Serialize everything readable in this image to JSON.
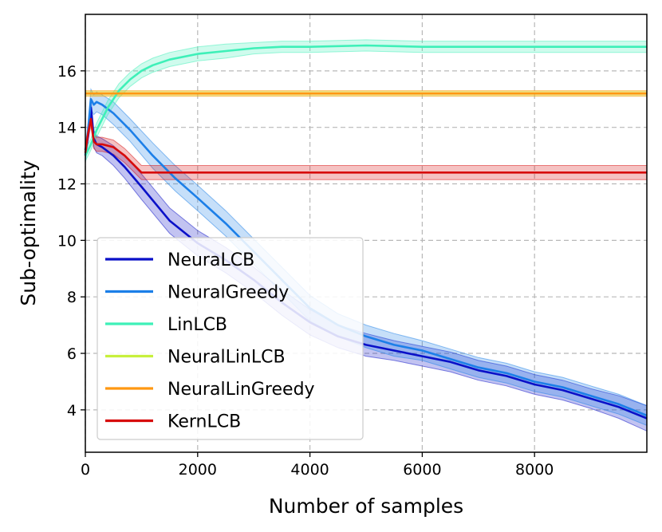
{
  "chart_data": {
    "type": "line",
    "title": "",
    "xlabel": "Number of samples",
    "ylabel": "Sub-optimality",
    "xlim": [
      0,
      10000
    ],
    "ylim": [
      2.5,
      18
    ],
    "xticks": [
      0,
      2000,
      4000,
      6000,
      8000
    ],
    "yticks": [
      4,
      6,
      8,
      10,
      12,
      14,
      16
    ],
    "xtick_labels": [
      "0",
      "2000",
      "4000",
      "6000",
      "8000"
    ],
    "ytick_labels": [
      "4",
      "6",
      "8",
      "10",
      "12",
      "14",
      "16"
    ],
    "grid": true,
    "legend_position": "bottom-left",
    "series": [
      {
        "name": "NeuraLCB",
        "color": "#0a10c8",
        "x": [
          0,
          50,
          100,
          150,
          200,
          300,
          500,
          700,
          1000,
          1500,
          2000,
          2500,
          3000,
          3500,
          4000,
          4500,
          5000,
          5500,
          6000,
          6500,
          7000,
          7500,
          8000,
          8500,
          9000,
          9500,
          10000
        ],
        "y": [
          13.2,
          13.7,
          14.7,
          13.6,
          13.4,
          13.3,
          13.0,
          12.6,
          11.9,
          10.7,
          9.9,
          9.3,
          8.6,
          7.8,
          7.1,
          6.6,
          6.3,
          6.1,
          5.9,
          5.7,
          5.4,
          5.2,
          4.9,
          4.7,
          4.4,
          4.1,
          3.7
        ],
        "band": [
          0.25,
          0.25,
          0.3,
          0.3,
          0.3,
          0.3,
          0.35,
          0.4,
          0.45,
          0.45,
          0.45,
          0.45,
          0.45,
          0.45,
          0.45,
          0.4,
          0.4,
          0.35,
          0.35,
          0.35,
          0.35,
          0.35,
          0.35,
          0.35,
          0.35,
          0.4,
          0.45
        ]
      },
      {
        "name": "NeuralGreedy",
        "color": "#1c7fe8",
        "x": [
          0,
          50,
          100,
          150,
          200,
          300,
          500,
          800,
          1200,
          1600,
          2000,
          2500,
          3000,
          3500,
          4000,
          4500,
          5000,
          5500,
          6000,
          6500,
          7000,
          7500,
          8000,
          8500,
          9000,
          9500,
          10000
        ],
        "y": [
          13.0,
          13.9,
          15.0,
          14.8,
          14.9,
          14.8,
          14.5,
          13.9,
          13.0,
          12.2,
          11.5,
          10.6,
          9.6,
          8.6,
          7.6,
          7.0,
          6.6,
          6.3,
          6.1,
          5.8,
          5.5,
          5.3,
          5.0,
          4.8,
          4.5,
          4.2,
          3.8
        ],
        "band": [
          0.25,
          0.3,
          0.35,
          0.35,
          0.35,
          0.35,
          0.4,
          0.4,
          0.45,
          0.45,
          0.45,
          0.45,
          0.45,
          0.45,
          0.45,
          0.4,
          0.4,
          0.4,
          0.35,
          0.35,
          0.35,
          0.35,
          0.35,
          0.35,
          0.35,
          0.35,
          0.35
        ]
      },
      {
        "name": "LinLCB",
        "color": "#3ef0b8",
        "x": [
          0,
          100,
          200,
          400,
          600,
          800,
          1000,
          1200,
          1500,
          2000,
          2500,
          3000,
          3500,
          4000,
          5000,
          6000,
          7000,
          8000,
          9000,
          10000
        ],
        "y": [
          13.0,
          13.4,
          13.9,
          14.7,
          15.3,
          15.7,
          16.0,
          16.2,
          16.4,
          16.6,
          16.7,
          16.8,
          16.85,
          16.85,
          16.9,
          16.85,
          16.85,
          16.85,
          16.85,
          16.85
        ],
        "band": [
          0.2,
          0.2,
          0.25,
          0.25,
          0.25,
          0.25,
          0.25,
          0.25,
          0.25,
          0.25,
          0.25,
          0.2,
          0.2,
          0.2,
          0.2,
          0.2,
          0.2,
          0.2,
          0.2,
          0.2
        ]
      },
      {
        "name": "NeuralLinLCB",
        "color": "#c7f03c",
        "x": [
          0,
          10000
        ],
        "y": [
          15.2,
          15.2
        ],
        "band": [
          0.08,
          0.08
        ]
      },
      {
        "name": "NeuralLinGreedy",
        "color": "#ff9812",
        "x": [
          0,
          10000
        ],
        "y": [
          15.2,
          15.2
        ],
        "band": [
          0.1,
          0.1
        ]
      },
      {
        "name": "KernLCB",
        "color": "#d70a0a",
        "x": [
          0,
          50,
          100,
          150,
          200,
          300,
          500,
          700,
          900,
          1000,
          10000
        ],
        "y": [
          13.1,
          13.8,
          14.3,
          13.5,
          13.4,
          13.4,
          13.3,
          13.0,
          12.6,
          12.4,
          12.4
        ],
        "band": [
          0.2,
          0.2,
          0.25,
          0.25,
          0.25,
          0.25,
          0.25,
          0.25,
          0.25,
          0.25,
          0.25
        ]
      }
    ]
  }
}
